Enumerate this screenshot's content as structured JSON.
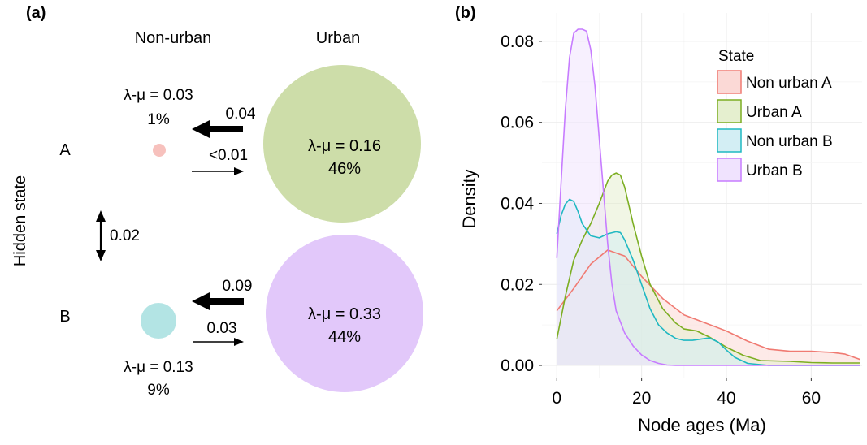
{
  "panel_a": {
    "label": "(a)",
    "col_nonurban": "Non-urban",
    "col_urban": "Urban",
    "row_a": "A",
    "row_b": "B",
    "y_label": "Hidden state",
    "vertical_rate": "0.02",
    "nodes": {
      "nonurban_a": {
        "rate": "λ-μ = 0.03",
        "pct": "1%",
        "color": "#f7c1bd"
      },
      "urban_a": {
        "rate": "λ-μ = 0.16",
        "pct": "46%",
        "color": "#cddda9"
      },
      "nonurban_b": {
        "rate": "λ-μ = 0.13",
        "pct": "9%",
        "color": "#b3e4e4"
      },
      "urban_b": {
        "rate": "λ-μ = 0.33",
        "pct": "44%",
        "color": "#e2c8fa"
      }
    },
    "arrows": {
      "a_urban_to_nonurban": "0.04",
      "a_nonurban_to_urban": "<0.01",
      "b_urban_to_nonurban": "0.09",
      "b_nonurban_to_urban": "0.03"
    }
  },
  "panel_b": {
    "label": "(b)",
    "xlabel": "Node ages (Ma)",
    "ylabel": "Density",
    "legend_title": "State"
  },
  "chart_data": {
    "type": "area",
    "title": "",
    "xlabel": "Node ages (Ma)",
    "ylabel": "Density",
    "xlim": [
      -3.5,
      72
    ],
    "ylim": [
      -0.003,
      0.087
    ],
    "x_ticks": [
      0,
      20,
      40,
      60
    ],
    "y_ticks": [
      0.0,
      0.02,
      0.04,
      0.06,
      0.08
    ],
    "x_tick_labels": [
      "0",
      "20",
      "40",
      "60"
    ],
    "y_tick_labels": [
      "0.00",
      "0.02",
      "0.04",
      "0.06",
      "0.08"
    ],
    "grid": true,
    "legend_position": "top-right",
    "series": [
      {
        "name": "Non urban A",
        "color": "#f07a72",
        "fill": "#fbd9d6",
        "x": [
          0,
          4,
          8,
          12,
          16,
          20,
          25,
          30,
          35,
          40,
          45,
          50,
          55,
          60,
          65,
          68,
          71.5
        ],
        "y": [
          0.0135,
          0.019,
          0.025,
          0.0285,
          0.027,
          0.022,
          0.0165,
          0.0125,
          0.0105,
          0.0085,
          0.006,
          0.004,
          0.0035,
          0.0035,
          0.0032,
          0.0028,
          0.0015
        ]
      },
      {
        "name": "Urban A",
        "color": "#7cae22",
        "fill": "#e5efcf",
        "x": [
          0,
          2,
          4,
          6,
          8,
          10,
          12,
          13,
          14,
          15,
          16,
          18,
          20,
          22,
          25,
          28,
          30,
          33,
          36,
          40,
          44,
          48,
          55,
          60,
          65,
          71.5
        ],
        "y": [
          0.0065,
          0.017,
          0.026,
          0.031,
          0.035,
          0.04,
          0.0455,
          0.047,
          0.0475,
          0.047,
          0.044,
          0.035,
          0.027,
          0.02,
          0.014,
          0.0105,
          0.009,
          0.0085,
          0.007,
          0.0045,
          0.0025,
          0.0012,
          0.001,
          0.0007,
          0.0006,
          0.0006
        ]
      },
      {
        "name": "Non urban B",
        "color": "#1fb8c2",
        "fill": "#d3eef4",
        "x": [
          0,
          1,
          2,
          3,
          4,
          5,
          6,
          8,
          10,
          12,
          14,
          15,
          16,
          18,
          20,
          22,
          24,
          26,
          28,
          30,
          32,
          34,
          36,
          38,
          40,
          42,
          45,
          50,
          71.5
        ],
        "y": [
          0.0325,
          0.037,
          0.0398,
          0.041,
          0.0405,
          0.038,
          0.035,
          0.032,
          0.0315,
          0.0325,
          0.033,
          0.0328,
          0.031,
          0.026,
          0.02,
          0.014,
          0.01,
          0.008,
          0.0067,
          0.0062,
          0.0062,
          0.0065,
          0.0068,
          0.0058,
          0.0038,
          0.002,
          0.0005,
          0.0,
          0.0
        ]
      },
      {
        "name": "Urban B",
        "color": "#c77cff",
        "fill": "#f0e3fe",
        "x": [
          0,
          1,
          2,
          3,
          4,
          5,
          6,
          7,
          8,
          9,
          10,
          11,
          12,
          13,
          14,
          16,
          18,
          20,
          22,
          24,
          26,
          28,
          71.5
        ],
        "y": [
          0.0265,
          0.045,
          0.063,
          0.076,
          0.082,
          0.083,
          0.083,
          0.0825,
          0.078,
          0.069,
          0.056,
          0.043,
          0.03,
          0.02,
          0.0135,
          0.008,
          0.0048,
          0.0026,
          0.0012,
          0.0005,
          0.0001,
          0.0,
          0.0
        ]
      }
    ]
  }
}
